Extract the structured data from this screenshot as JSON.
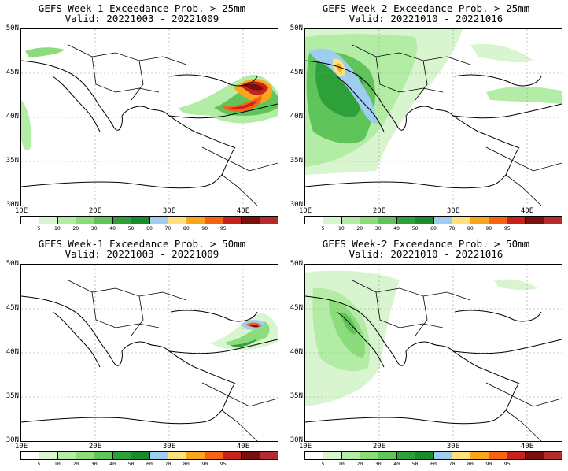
{
  "panels": [
    {
      "title": "GEFS Week-1 Exceedance Prob. > 25mm",
      "valid": "Valid: 20221003 - 20221009"
    },
    {
      "title": "GEFS Week-2 Exceedance Prob. > 25mm",
      "valid": "Valid: 20221010 - 20221016"
    },
    {
      "title": "GEFS Week-1 Exceedance Prob. > 50mm",
      "valid": "Valid: 20221003 - 20221009"
    },
    {
      "title": "GEFS Week-2 Exceedance Prob. > 50mm",
      "valid": "Valid: 20221010 - 20221016"
    }
  ],
  "lat_labels": [
    "50N",
    "45N",
    "40N",
    "35N",
    "30N"
  ],
  "lon_labels": [
    "10E",
    "20E",
    "30E",
    "40E"
  ],
  "colorbar": {
    "labels": [
      "5",
      "10",
      "20",
      "30",
      "40",
      "50",
      "60",
      "70",
      "80",
      "90",
      "95"
    ],
    "colors": [
      "#ffffff",
      "#d9f5d0",
      "#b3eca4",
      "#8cdc7c",
      "#5fc45a",
      "#2ea03a",
      "#1a8a2c",
      "#9ecdf0",
      "#fde27c",
      "#f9a51e",
      "#f46412",
      "#c8221d",
      "#7a0f0f",
      "#b52a2a"
    ]
  },
  "map_features": {
    "coastline_color": "#000000",
    "grid": "dotted",
    "features": [
      "coastlines",
      "country borders",
      "lat/lon gridlines"
    ]
  }
}
